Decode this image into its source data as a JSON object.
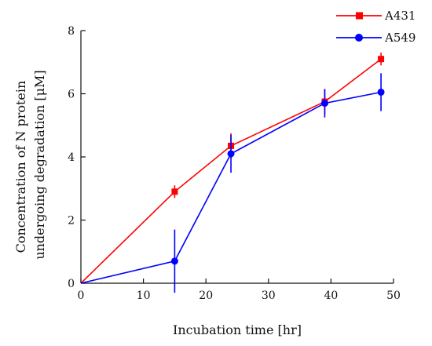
{
  "chart_data": {
    "type": "line",
    "xlabel": "Incubation time [hr]",
    "ylabel_lines": [
      "Concentration of N protein",
      "undergoing degradation [μM]"
    ],
    "xlim": [
      0,
      50
    ],
    "ylim": [
      0,
      8
    ],
    "x_ticks": [
      0,
      10,
      20,
      30,
      40,
      50
    ],
    "y_ticks": [
      0,
      2,
      4,
      6,
      8
    ],
    "grid": false,
    "legend_position": "top-right",
    "series": [
      {
        "name": "A431",
        "color": "#ff0000",
        "marker": "square",
        "x": [
          0,
          15,
          24,
          39,
          48
        ],
        "y": [
          0,
          2.9,
          4.35,
          5.75,
          7.1
        ],
        "err": [
          0,
          0.2,
          0.4,
          0.4,
          0.2
        ]
      },
      {
        "name": "A549",
        "color": "#0000ff",
        "marker": "circle",
        "x": [
          0,
          15,
          24,
          39,
          48
        ],
        "y": [
          0,
          0.7,
          4.1,
          5.7,
          6.05
        ],
        "err": [
          0,
          1.0,
          0.6,
          0.45,
          0.6
        ]
      }
    ]
  }
}
